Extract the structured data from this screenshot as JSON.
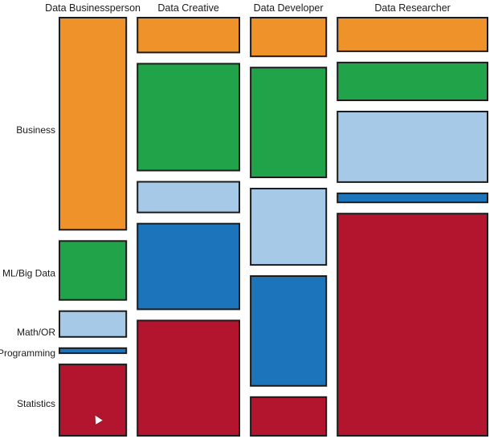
{
  "chart_data": {
    "type": "mosaic",
    "categories": [
      "Data Businessperson",
      "Data Creative",
      "Data Developer",
      "Data Researcher"
    ],
    "skills": [
      "Business",
      "ML/Big Data",
      "Math/OR",
      "Programming",
      "Statistics"
    ],
    "column_widths": [
      0.16,
      0.24,
      0.18,
      0.35
    ],
    "shares": [
      [
        0.52,
        0.15,
        0.07,
        0.02,
        0.18
      ],
      [
        0.09,
        0.26,
        0.08,
        0.21,
        0.28
      ],
      [
        0.1,
        0.27,
        0.19,
        0.27,
        0.1
      ],
      [
        0.09,
        0.1,
        0.18,
        0.03,
        0.55
      ]
    ],
    "colors": {
      "Business": "#f0922a",
      "ML/Big Data": "#21a349",
      "Math/OR": "#a6c9e8",
      "Programming": "#1c75bb",
      "Statistics": "#b3142e"
    },
    "row_label_positions": [
      0.27,
      0.61,
      0.75,
      0.8,
      0.92
    ]
  }
}
